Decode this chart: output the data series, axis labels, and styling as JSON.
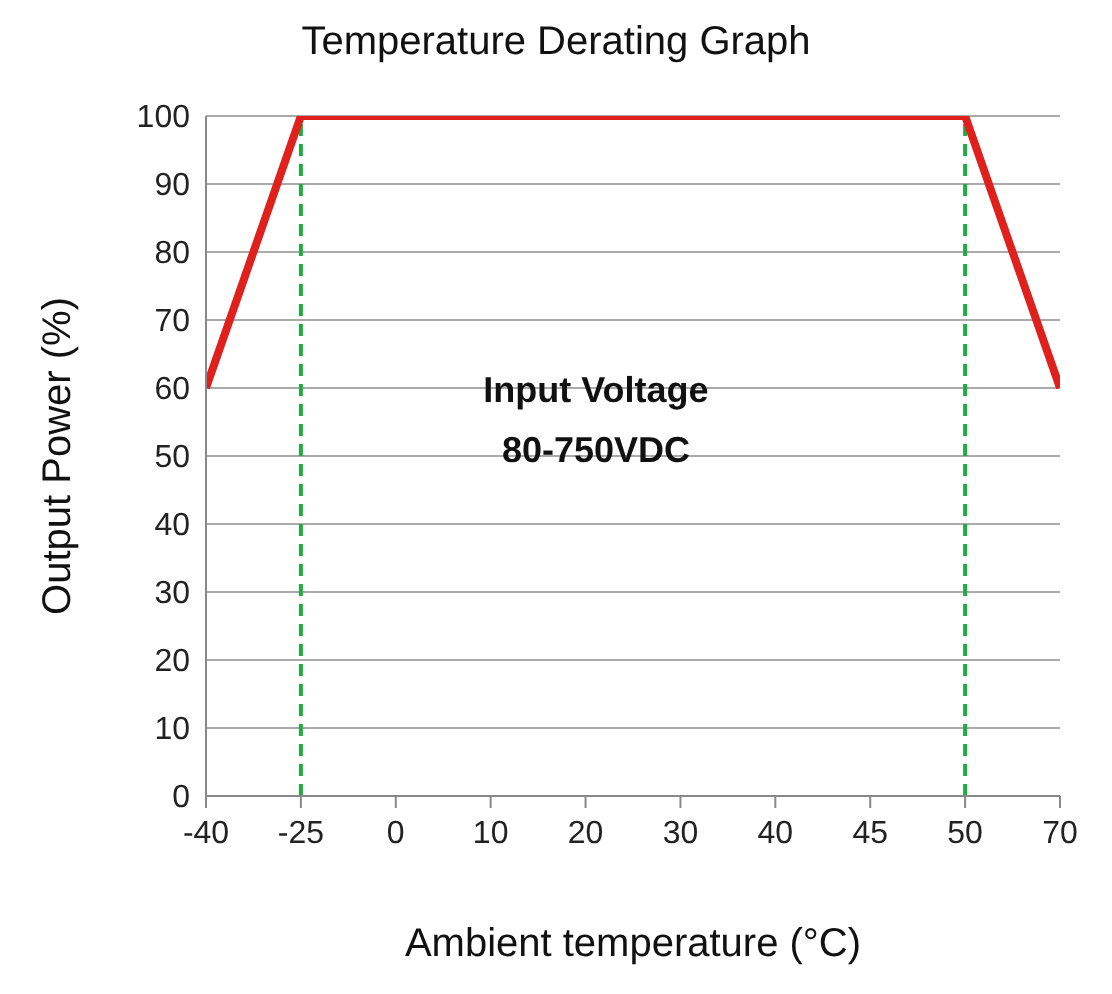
{
  "chart_data": {
    "type": "line",
    "title": "Temperature Derating Graph",
    "xlabel": "Ambient temperature (°C)",
    "ylabel": "Output Power (%)",
    "categories": [
      "-40",
      "-25",
      "0",
      "10",
      "20",
      "30",
      "40",
      "45",
      "50",
      "70"
    ],
    "series": [
      {
        "color": "#e0201c",
        "values": [
          60,
          100,
          100,
          100,
          100,
          100,
          100,
          100,
          100,
          60
        ]
      }
    ],
    "ylim": [
      0,
      100
    ],
    "yticks": [
      0,
      10,
      20,
      30,
      40,
      50,
      60,
      70,
      80,
      90,
      100
    ],
    "grid": "y",
    "marker": "none",
    "line_style": "solid",
    "legend": false,
    "ref_lines": [
      {
        "axis": "x",
        "value": "-25",
        "color": "#22aa44",
        "line_style": "dashed"
      },
      {
        "axis": "x",
        "value": "50",
        "color": "#22aa44",
        "line_style": "dashed"
      }
    ],
    "annotations": [
      "Input Voltage",
      "80-750VDC"
    ]
  }
}
